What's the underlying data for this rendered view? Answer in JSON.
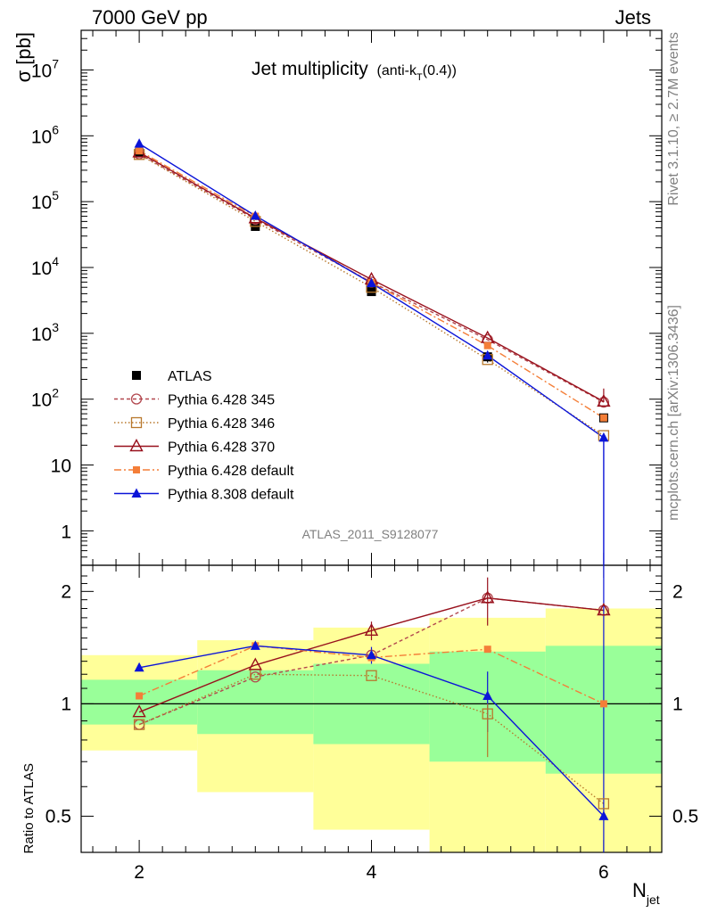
{
  "header": {
    "energy": "7000 GeV pp",
    "category": "Jets"
  },
  "side": {
    "rivet": "Rivet 3.1.10, ≥ 2.7M events",
    "source": "mcplots.cern.ch [arXiv:1306.3436]"
  },
  "analysis_id": "ATLAS_2011_S9128077",
  "main": {
    "title": "Jet multiplicity",
    "title_sub_prefix": "(anti-k",
    "title_sub_index": "T",
    "title_sub_suffix": "(0.4))",
    "ylabel": "σ [pb]"
  },
  "ratio": {
    "ylabel": "Ratio to ATLAS"
  },
  "xaxis": {
    "label_main": "N",
    "label_sub": "jet"
  },
  "chart_data": [
    {
      "type": "line",
      "title": "Jet multiplicity (anti-kT(0.4))",
      "ylabel": "σ [pb]",
      "xlabel": "Njet",
      "yscale": "log",
      "xlim": [
        1.5,
        6.5
      ],
      "ylim": [
        0.3,
        40000000
      ],
      "x_ticks": [
        2,
        4,
        6
      ],
      "y_ticks": [
        {
          "v": 1,
          "base": "1",
          "exp": ""
        },
        {
          "v": 10,
          "base": "10",
          "exp": ""
        },
        {
          "v": 100,
          "base": "10",
          "exp": "2"
        },
        {
          "v": 1000,
          "base": "10",
          "exp": "3"
        },
        {
          "v": 10000,
          "base": "10",
          "exp": "4"
        },
        {
          "v": 100000,
          "base": "10",
          "exp": "5"
        },
        {
          "v": 1000000,
          "base": "10",
          "exp": "6"
        },
        {
          "v": 10000000,
          "base": "10",
          "exp": "7"
        }
      ],
      "x": [
        2,
        3,
        4,
        5,
        6
      ],
      "data": {
        "name": "ATLAS",
        "values": [
          550000,
          42000,
          4300,
          440,
          52
        ],
        "err_lo": [
          0,
          0,
          0,
          80,
          0
        ],
        "err_hi": [
          0,
          0,
          0,
          80,
          0
        ]
      },
      "series": [
        {
          "name": "Pythia 6.428 345",
          "color": "#b2474e",
          "dash": "4,3",
          "marker": "circle-open",
          "values": [
            530000,
            54000,
            6000,
            800,
            90
          ]
        },
        {
          "name": "Pythia 6.428 346",
          "color": "#b8782c",
          "dash": "1.5,2.5",
          "marker": "square-open",
          "values": [
            520000,
            50000,
            5000,
            400,
            28
          ]
        },
        {
          "name": "Pythia 6.428 370",
          "color": "#98101c",
          "dash": "",
          "marker": "triangle-open",
          "values": [
            560000,
            56000,
            6600,
            850,
            92
          ]
        },
        {
          "name": "Pythia 6.428 default",
          "color": "#f47e38",
          "dash": "8,3,2,3",
          "marker": "square-filled",
          "values": [
            590000,
            60000,
            5900,
            650,
            52
          ]
        },
        {
          "name": "Pythia 8.308 default",
          "color": "#0b14d8",
          "dash": "",
          "marker": "triangle-filled",
          "values": [
            760000,
            61000,
            5800,
            460,
            26
          ]
        }
      ]
    },
    {
      "type": "line",
      "ylabel": "Ratio to ATLAS",
      "xlabel": "Njet",
      "yscale": "log",
      "xlim": [
        1.5,
        6.5
      ],
      "ylim": [
        0.4,
        2.35
      ],
      "y_ticks": [
        {
          "v": 0.5,
          "label": "0.5"
        },
        {
          "v": 1,
          "label": "1"
        },
        {
          "v": 2,
          "label": "2"
        }
      ],
      "bands": [
        {
          "x0": 1.5,
          "x1": 2.5,
          "inner": [
            0.88,
            1.16
          ],
          "outer": [
            0.75,
            1.35
          ]
        },
        {
          "x0": 2.5,
          "x1": 3.5,
          "inner": [
            0.83,
            1.23
          ],
          "outer": [
            0.58,
            1.48
          ]
        },
        {
          "x0": 3.5,
          "x1": 4.5,
          "inner": [
            0.78,
            1.28
          ],
          "outer": [
            0.46,
            1.6
          ]
        },
        {
          "x0": 4.5,
          "x1": 5.5,
          "inner": [
            0.7,
            1.38
          ],
          "outer": [
            0.37,
            1.7
          ]
        },
        {
          "x0": 5.5,
          "x1": 6.5,
          "inner": [
            0.65,
            1.43
          ],
          "outer": [
            0.37,
            1.8
          ]
        }
      ],
      "x": [
        2,
        3,
        4,
        5,
        6
      ],
      "series": [
        {
          "name": "Pythia 6.428 345",
          "values": [
            0.88,
            1.18,
            1.35,
            1.92,
            1.78
          ]
        },
        {
          "name": "Pythia 6.428 346",
          "values": [
            0.88,
            1.2,
            1.19,
            0.94,
            0.54
          ]
        },
        {
          "name": "Pythia 6.428 370",
          "values": [
            0.95,
            1.27,
            1.57,
            1.92,
            1.78
          ]
        },
        {
          "name": "Pythia 6.428 default",
          "values": [
            1.05,
            1.43,
            1.33,
            1.4,
            1.0
          ]
        },
        {
          "name": "Pythia 8.308 default",
          "values": [
            1.25,
            1.43,
            1.35,
            1.05,
            0.5
          ]
        }
      ]
    }
  ]
}
